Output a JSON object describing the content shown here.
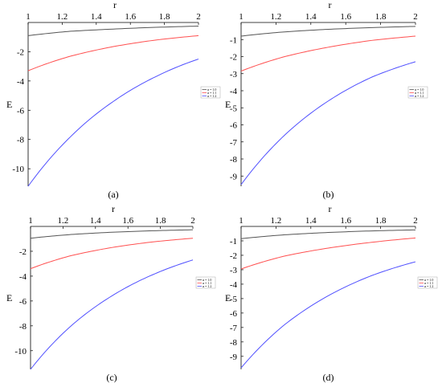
{
  "panels": [
    {
      "id": "a",
      "caption": "(a)",
      "chart_data": {
        "type": "line",
        "xlabel": "r",
        "ylabel": "E",
        "xlim": [
          1,
          2
        ],
        "ylim": [
          -11.2,
          0
        ],
        "xticks": [
          "1",
          "1.2",
          "1.4",
          "1.6",
          "1.8",
          "2"
        ],
        "yticks": [
          "-2",
          "-4",
          "-6",
          "-8",
          "-10"
        ],
        "legend": "right",
        "series": [
          {
            "name": "α = 1.0",
            "color": "#555555",
            "x": [
              1,
              1.25,
              1.5,
              1.75,
              2
            ],
            "y": [
              -0.9,
              -0.6,
              -0.45,
              -0.33,
              -0.25
            ]
          },
          {
            "name": "α = 1.1",
            "color": "#ff5050",
            "x": [
              1,
              1.25,
              1.5,
              1.75,
              2
            ],
            "y": [
              -3.3,
              -2.3,
              -1.65,
              -1.2,
              -0.9
            ]
          },
          {
            "name": "α = 1.2",
            "color": "#5050ff",
            "x": [
              1,
              1.25,
              1.5,
              1.75,
              2
            ],
            "y": [
              -11.2,
              -7.8,
              -5.4,
              -3.7,
              -2.5
            ]
          }
        ]
      }
    },
    {
      "id": "b",
      "caption": "(b)",
      "chart_data": {
        "type": "line",
        "xlabel": "r",
        "ylabel": "E",
        "xlim": [
          1,
          2
        ],
        "ylim": [
          -9.6,
          0
        ],
        "xticks": [
          "1",
          "1.2",
          "1.4",
          "1.6",
          "1.8",
          "2"
        ],
        "yticks": [
          "-1",
          "-2",
          "-3",
          "-4",
          "-5",
          "-6",
          "-7",
          "-8",
          "-9"
        ],
        "legend": "right",
        "series": [
          {
            "name": "α = 1.0",
            "color": "#555555",
            "x": [
              1,
              1.25,
              1.5,
              1.75,
              2
            ],
            "y": [
              -0.8,
              -0.55,
              -0.4,
              -0.3,
              -0.23
            ]
          },
          {
            "name": "α = 1.1",
            "color": "#ff5050",
            "x": [
              1,
              1.25,
              1.5,
              1.75,
              2
            ],
            "y": [
              -2.85,
              -2.0,
              -1.45,
              -1.05,
              -0.8
            ]
          },
          {
            "name": "α = 1.2",
            "color": "#5050ff",
            "x": [
              1,
              1.25,
              1.5,
              1.75,
              2
            ],
            "y": [
              -9.5,
              -6.6,
              -4.6,
              -3.2,
              -2.3
            ]
          }
        ]
      }
    },
    {
      "id": "c",
      "caption": "(c)",
      "chart_data": {
        "type": "line",
        "xlabel": "r",
        "ylabel": "E",
        "xlim": [
          1,
          2
        ],
        "ylim": [
          -11.5,
          0
        ],
        "xticks": [
          "1",
          "1.2",
          "1.4",
          "1.6",
          "1.8",
          "2"
        ],
        "yticks": [
          "-2",
          "-4",
          "-6",
          "-8",
          "-10"
        ],
        "legend": "right",
        "series": [
          {
            "name": "α = 1.0",
            "color": "#555555",
            "x": [
              1,
              1.25,
              1.5,
              1.75,
              2
            ],
            "y": [
              -0.95,
              -0.65,
              -0.47,
              -0.35,
              -0.27
            ]
          },
          {
            "name": "α = 1.1",
            "color": "#ff5050",
            "x": [
              1,
              1.25,
              1.5,
              1.75,
              2
            ],
            "y": [
              -3.4,
              -2.35,
              -1.7,
              -1.25,
              -0.95
            ]
          },
          {
            "name": "α = 1.2",
            "color": "#5050ff",
            "x": [
              1,
              1.25,
              1.5,
              1.75,
              2
            ],
            "y": [
              -11.5,
              -8.0,
              -5.6,
              -3.9,
              -2.7
            ]
          }
        ]
      }
    },
    {
      "id": "d",
      "caption": "(d)",
      "chart_data": {
        "type": "line",
        "xlabel": "r",
        "ylabel": "E",
        "xlim": [
          1,
          2
        ],
        "ylim": [
          -9.9,
          0
        ],
        "xticks": [
          "1",
          "1.2",
          "1.4",
          "1.6",
          "1.8",
          "2"
        ],
        "yticks": [
          "-1",
          "-2",
          "-3",
          "-4",
          "-5",
          "-6",
          "-7",
          "-8",
          "-9"
        ],
        "legend": "right",
        "series": [
          {
            "name": "α = 1.0",
            "color": "#555555",
            "x": [
              1,
              1.25,
              1.5,
              1.75,
              2
            ],
            "y": [
              -0.85,
              -0.58,
              -0.42,
              -0.31,
              -0.24
            ]
          },
          {
            "name": "α = 1.1",
            "color": "#ff5050",
            "x": [
              1,
              1.25,
              1.5,
              1.75,
              2
            ],
            "y": [
              -2.95,
              -2.05,
              -1.5,
              -1.1,
              -0.8
            ]
          },
          {
            "name": "α = 1.2",
            "color": "#5050ff",
            "x": [
              1,
              1.25,
              1.5,
              1.75,
              2
            ],
            "y": [
              -9.8,
              -6.8,
              -4.8,
              -3.4,
              -2.45
            ]
          }
        ]
      }
    }
  ]
}
